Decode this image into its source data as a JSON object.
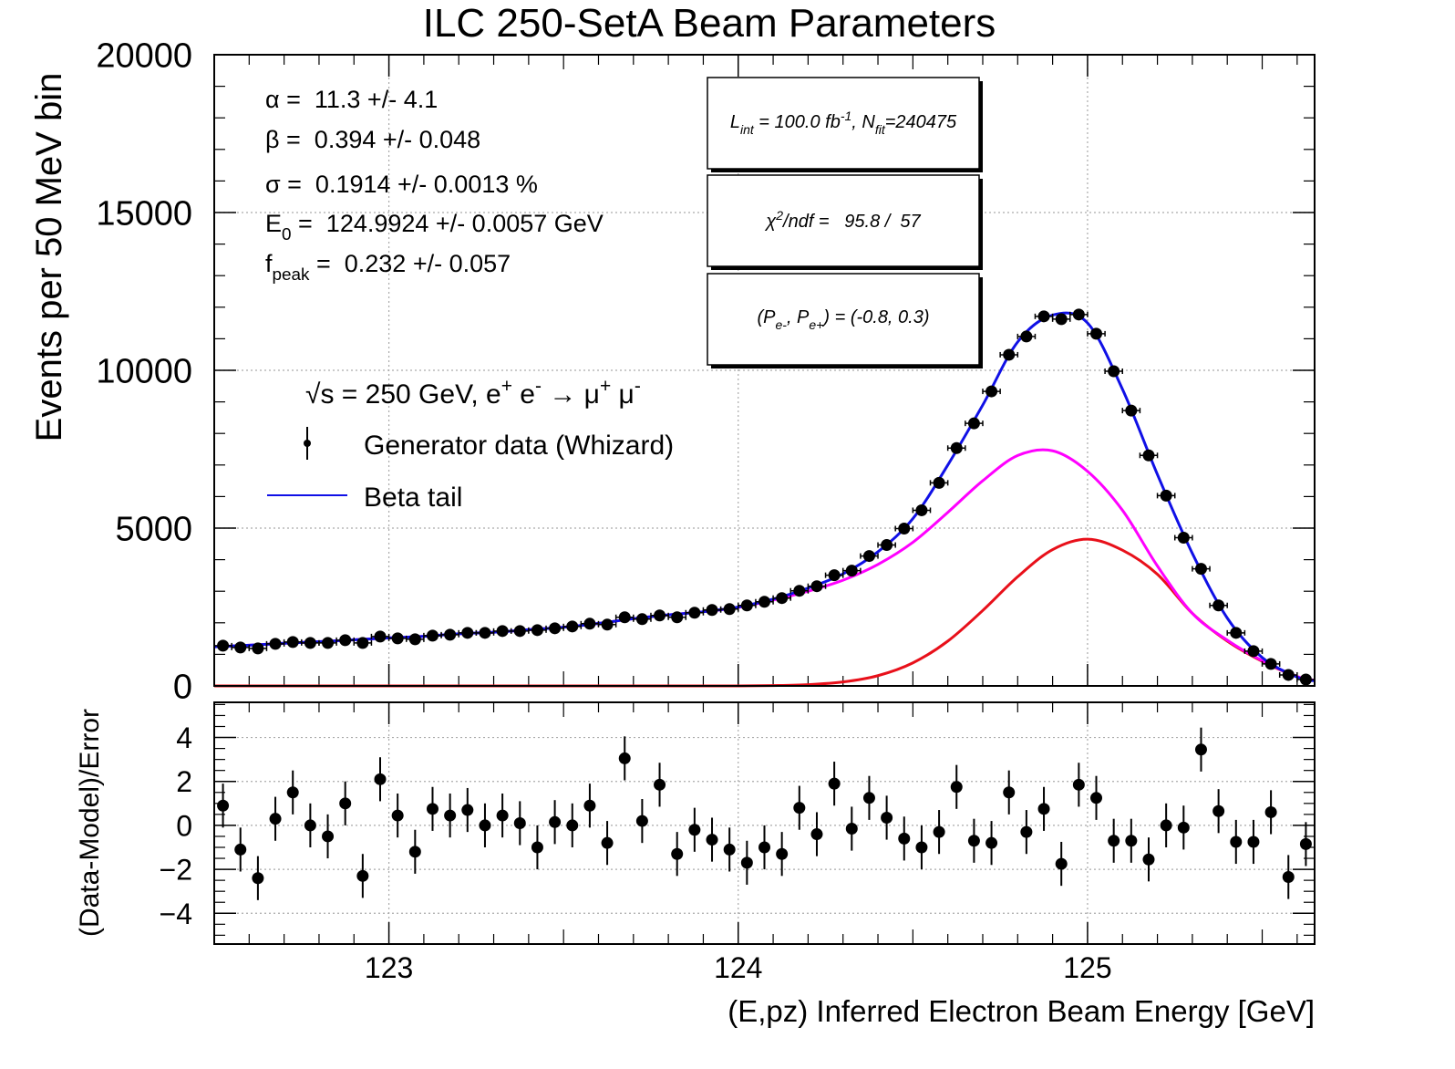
{
  "chart_data": [
    {
      "type": "scatter",
      "title": "ILC 250-SetA Beam Parameters",
      "y_label": "Events per 50 MeV bin",
      "ylim": [
        0,
        20000
      ],
      "yticks": [
        0,
        5000,
        10000,
        15000,
        20000
      ],
      "grid": true,
      "fit_parameters": [
        [
          "α =  11.3 +/- 4.1"
        ],
        [
          "β =  0.394 +/- 0.048"
        ],
        [
          "σ =  0.1914 +/- 0.0013 %"
        ],
        [
          "E",
          "0",
          " =  124.9924 +/- 0.0057 GeV"
        ],
        [
          "f",
          "peak",
          " =  0.232 +/- 0.057"
        ]
      ],
      "boxes": [
        [
          "L",
          "int",
          " = 100.0 fb",
          "-1",
          ", N",
          "fit",
          "=240475"
        ],
        [
          "χ",
          "2",
          "/ndf =   95.8 /  57"
        ],
        [
          "(P",
          "e-",
          ", P",
          "e+",
          ") = (-0.8, 0.3)"
        ]
      ],
      "legend_title": [
        "√s = 250 GeV, e",
        "+",
        " e",
        "-",
        " → μ",
        "+",
        " μ",
        "-"
      ],
      "series": [
        {
          "name": "Beta tail",
          "color": "#1010e6",
          "mark": "line",
          "x": [
            122.5,
            122.6,
            122.7,
            122.8,
            122.9,
            123.0,
            123.1,
            123.2,
            123.3,
            123.4,
            123.5,
            123.6,
            123.7,
            123.8,
            123.9,
            124.0,
            124.1,
            124.2,
            124.3,
            124.4,
            124.5,
            124.6,
            124.7,
            124.8,
            124.9,
            125.0,
            125.1,
            125.2,
            125.3,
            125.4,
            125.5,
            125.6,
            125.65
          ],
          "values": [
            1240,
            1290,
            1350,
            1400,
            1460,
            1520,
            1570,
            1650,
            1700,
            1780,
            1860,
            1980,
            2130,
            2250,
            2350,
            2500,
            2750,
            3100,
            3550,
            4250,
            5300,
            7000,
            8900,
            10900,
            11750,
            11500,
            9400,
            6700,
            4200,
            2150,
            900,
            280,
            160
          ]
        },
        {
          "color": "#ff00ff",
          "mark": "line",
          "x": [
            122.5,
            122.6,
            122.7,
            122.8,
            122.9,
            123.0,
            123.1,
            123.2,
            123.3,
            123.4,
            123.5,
            123.6,
            123.7,
            123.8,
            123.9,
            124.0,
            124.1,
            124.2,
            124.3,
            124.4,
            124.5,
            124.6,
            124.7,
            124.8,
            124.9,
            125.0,
            125.1,
            125.2,
            125.3,
            125.4,
            125.5,
            125.6,
            125.65
          ],
          "values": [
            1240,
            1290,
            1350,
            1400,
            1460,
            1520,
            1570,
            1650,
            1700,
            1780,
            1860,
            1980,
            2130,
            2250,
            2350,
            2490,
            2720,
            3000,
            3350,
            3850,
            4550,
            5500,
            6500,
            7300,
            7450,
            6800,
            5565,
            3800,
            2300,
            1450,
            800,
            300,
            180
          ]
        },
        {
          "color": "#e8101a",
          "mark": "line",
          "x": [
            122.5,
            122.6,
            122.7,
            122.8,
            122.9,
            123.0,
            123.1,
            123.2,
            123.3,
            123.4,
            123.5,
            123.6,
            123.7,
            123.8,
            123.9,
            124.0,
            124.1,
            124.2,
            124.3,
            124.4,
            124.5,
            124.6,
            124.7,
            124.8,
            124.9,
            125.0,
            125.1,
            125.2,
            125.3,
            125.4,
            125.5,
            125.6,
            125.65
          ],
          "values": [
            0,
            0,
            0,
            0,
            0,
            0,
            0,
            0,
            0,
            0,
            0,
            0,
            0,
            0,
            0,
            0,
            10,
            40,
            125,
            325,
            730,
            1420,
            2390,
            3460,
            4320,
            4650,
            4300,
            3536,
            2300,
            1420,
            780,
            290,
            170
          ]
        },
        {
          "name": "Generator data (Whizard)",
          "color": "#000000",
          "mark": "points",
          "x": [
            122.525,
            122.575,
            122.625,
            122.675,
            122.725,
            122.775,
            122.825,
            122.875,
            122.925,
            122.975,
            123.025,
            123.075,
            123.125,
            123.175,
            123.225,
            123.275,
            123.325,
            123.375,
            123.425,
            123.475,
            123.525,
            123.575,
            123.625,
            123.675,
            123.725,
            123.775,
            123.825,
            123.875,
            123.925,
            123.975,
            124.025,
            124.075,
            124.125,
            124.175,
            124.225,
            124.275,
            124.325,
            124.375,
            124.425,
            124.475,
            124.525,
            124.575,
            124.625,
            124.675,
            124.725,
            124.775,
            124.825,
            124.875,
            124.925,
            124.975,
            125.025,
            125.075,
            125.125,
            125.175,
            125.225,
            125.275,
            125.325,
            125.375,
            125.425,
            125.475,
            125.525,
            125.575,
            125.625
          ],
          "values": [
            1275,
            1217,
            1188,
            1333,
            1391,
            1362,
            1362,
            1449,
            1362,
            1565,
            1507,
            1478,
            1594,
            1623,
            1681,
            1681,
            1739,
            1739,
            1768,
            1826,
            1884,
            1971,
            1942,
            2174,
            2116,
            2232,
            2174,
            2319,
            2406,
            2435,
            2551,
            2667,
            2783,
            3014,
            3159,
            3507,
            3652,
            4116,
            4464,
            4986,
            5565,
            6435,
            7536,
            8319,
            9333,
            10493,
            11072,
            11710,
            11623,
            11768,
            11159,
            9971,
            8725,
            7304,
            6029,
            4696,
            3710,
            2551,
            1681,
            1101,
            696,
            348,
            203
          ]
        }
      ]
    },
    {
      "type": "scatter",
      "y_label": "(Data-Model)/Error",
      "x_label": "(E,pz) Inferred Electron Beam Energy [GeV]",
      "xlim": [
        122.5,
        125.65
      ],
      "xticks": [
        123,
        124,
        125
      ],
      "ylim": [
        -5.4,
        5.6
      ],
      "yticks": [
        {
          "value": -4,
          "label": "−4"
        },
        {
          "value": -2,
          "label": "−2"
        },
        0,
        2,
        4
      ],
      "grid": true,
      "yerr": 1,
      "series": [
        {
          "color": "#000000",
          "mark": "points",
          "x": [
            122.525,
            122.575,
            122.625,
            122.675,
            122.725,
            122.775,
            122.825,
            122.875,
            122.925,
            122.975,
            123.025,
            123.075,
            123.125,
            123.175,
            123.225,
            123.275,
            123.325,
            123.375,
            123.425,
            123.475,
            123.525,
            123.575,
            123.625,
            123.675,
            123.725,
            123.775,
            123.825,
            123.875,
            123.925,
            123.975,
            124.025,
            124.075,
            124.125,
            124.175,
            124.225,
            124.275,
            124.325,
            124.375,
            124.425,
            124.475,
            124.525,
            124.575,
            124.625,
            124.675,
            124.725,
            124.775,
            124.825,
            124.875,
            124.925,
            124.975,
            125.025,
            125.075,
            125.125,
            125.175,
            125.225,
            125.275,
            125.325,
            125.375,
            125.425,
            125.475,
            125.525,
            125.575,
            125.625
          ],
          "values": [
            0.9,
            -1.1,
            -2.4,
            0.3,
            1.5,
            0.0,
            -0.5,
            1.0,
            -2.3,
            2.1,
            0.45,
            -1.2,
            0.75,
            0.45,
            0.7,
            0.0,
            0.45,
            0.1,
            -1.0,
            0.15,
            0.0,
            0.9,
            -0.8,
            3.05,
            0.2,
            1.85,
            -1.3,
            -0.2,
            -0.65,
            -1.1,
            -1.7,
            -1.0,
            -1.3,
            0.8,
            -0.4,
            1.9,
            -0.15,
            1.25,
            0.35,
            -0.6,
            -1.0,
            -0.3,
            1.75,
            -0.7,
            -0.8,
            1.5,
            -0.3,
            0.75,
            -1.75,
            1.85,
            1.25,
            -0.7,
            -0.7,
            -1.55,
            0.0,
            -0.1,
            3.45,
            0.65,
            -0.75,
            -0.75,
            0.6,
            -2.35,
            -0.85
          ]
        }
      ]
    }
  ]
}
